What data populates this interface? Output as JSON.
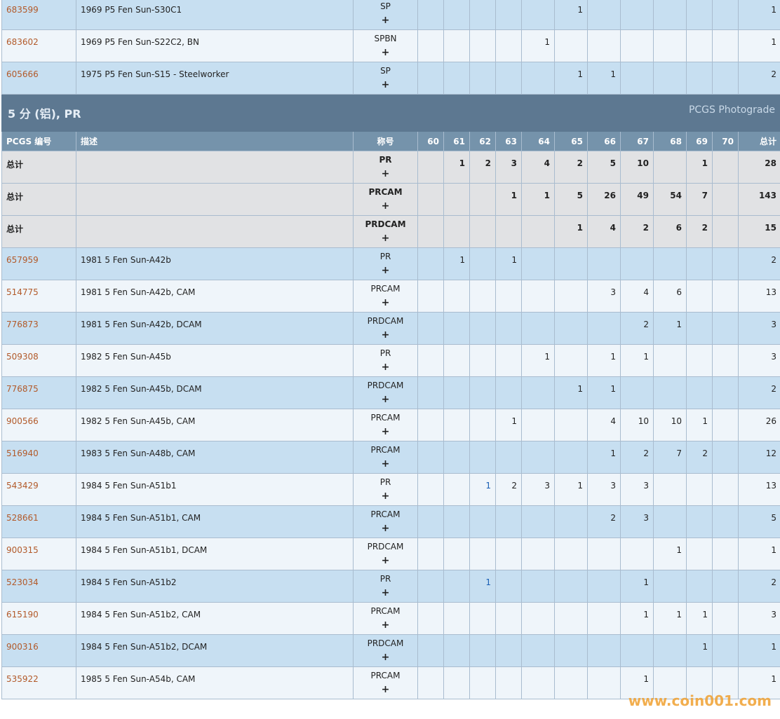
{
  "top_rows": [
    {
      "id": "683599",
      "desc": "1969 P5 Fen Sun-S30C1",
      "des": "SP",
      "grades": [
        null,
        null,
        null,
        null,
        null,
        1,
        null,
        null,
        null,
        null,
        null
      ],
      "total": "1"
    },
    {
      "id": "683602",
      "desc": "1969 P5 Fen Sun-S22C2, BN",
      "des": "SPBN",
      "grades": [
        null,
        null,
        null,
        null,
        1,
        null,
        null,
        null,
        null,
        null,
        null
      ],
      "total": "1"
    },
    {
      "id": "605666",
      "desc": "1975 P5 Fen Sun-S15 - Steelworker",
      "des": "SP",
      "grades": [
        null,
        null,
        null,
        null,
        null,
        1,
        1,
        null,
        null,
        null,
        null
      ],
      "total": "2"
    }
  ],
  "section": {
    "title": "5 分 (铝), PR",
    "link": "PCGS Photograde"
  },
  "headers": {
    "id": "PCGS 编号",
    "desc": "描述",
    "des": "称号",
    "grades": [
      "60",
      "61",
      "62",
      "63",
      "64",
      "65",
      "66",
      "67",
      "68",
      "69",
      "70"
    ],
    "total": "总计"
  },
  "plus": "+",
  "totals": [
    {
      "label": "总计",
      "des": "PR",
      "grades": [
        null,
        1,
        2,
        3,
        4,
        2,
        5,
        10,
        null,
        1,
        null
      ],
      "total": "28"
    },
    {
      "label": "总计",
      "des": "PRCAM",
      "grades": [
        null,
        null,
        null,
        1,
        1,
        5,
        26,
        49,
        54,
        7,
        null
      ],
      "total": "143"
    },
    {
      "label": "总计",
      "des": "PRDCAM",
      "grades": [
        null,
        null,
        null,
        null,
        null,
        1,
        4,
        2,
        6,
        2,
        null
      ],
      "total": "15"
    }
  ],
  "rows": [
    {
      "id": "657959",
      "desc": "1981 5 Fen Sun-A42b",
      "des": "PR",
      "grades": [
        null,
        1,
        null,
        1,
        null,
        null,
        null,
        null,
        null,
        null,
        null
      ],
      "total": "2"
    },
    {
      "id": "514775",
      "desc": "1981 5 Fen Sun-A42b, CAM",
      "des": "PRCAM",
      "grades": [
        null,
        null,
        null,
        null,
        null,
        null,
        3,
        4,
        6,
        null,
        null
      ],
      "total": "13"
    },
    {
      "id": "776873",
      "desc": "1981 5 Fen Sun-A42b, DCAM",
      "des": "PRDCAM",
      "grades": [
        null,
        null,
        null,
        null,
        null,
        null,
        null,
        2,
        1,
        null,
        null
      ],
      "total": "3"
    },
    {
      "id": "509308",
      "desc": "1982 5 Fen Sun-A45b",
      "des": "PR",
      "grades": [
        null,
        null,
        null,
        null,
        1,
        null,
        1,
        1,
        null,
        null,
        null
      ],
      "total": "3"
    },
    {
      "id": "776875",
      "desc": "1982 5 Fen Sun-A45b, DCAM",
      "des": "PRDCAM",
      "grades": [
        null,
        null,
        null,
        null,
        null,
        1,
        1,
        null,
        null,
        null,
        null
      ],
      "total": "2"
    },
    {
      "id": "900566",
      "desc": "1982 5 Fen Sun-A45b, CAM",
      "des": "PRCAM",
      "grades": [
        null,
        null,
        null,
        1,
        null,
        null,
        4,
        10,
        10,
        1,
        null
      ],
      "total": "26"
    },
    {
      "id": "516940",
      "desc": "1983 5 Fen Sun-A48b, CAM",
      "des": "PRCAM",
      "grades": [
        null,
        null,
        null,
        null,
        null,
        null,
        1,
        2,
        7,
        2,
        null
      ],
      "total": "12"
    },
    {
      "id": "543429",
      "desc": "1984 5 Fen Sun-A51b1",
      "des": "PR",
      "grades": [
        null,
        null,
        1,
        2,
        3,
        1,
        3,
        3,
        null,
        null,
        null
      ],
      "total": "13"
    },
    {
      "id": "528661",
      "desc": "1984 5 Fen Sun-A51b1, CAM",
      "des": "PRCAM",
      "grades": [
        null,
        null,
        null,
        null,
        null,
        null,
        2,
        3,
        null,
        null,
        null
      ],
      "total": "5"
    },
    {
      "id": "900315",
      "desc": "1984 5 Fen Sun-A51b1, DCAM",
      "des": "PRDCAM",
      "grades": [
        null,
        null,
        null,
        null,
        null,
        null,
        null,
        null,
        1,
        null,
        null
      ],
      "total": "1"
    },
    {
      "id": "523034",
      "desc": "1984 5 Fen Sun-A51b2",
      "des": "PR",
      "grades": [
        null,
        null,
        1,
        null,
        null,
        null,
        null,
        1,
        null,
        null,
        null
      ],
      "total": "2"
    },
    {
      "id": "615190",
      "desc": "1984 5 Fen Sun-A51b2, CAM",
      "des": "PRCAM",
      "grades": [
        null,
        null,
        null,
        null,
        null,
        null,
        null,
        1,
        1,
        1,
        null
      ],
      "total": "3"
    },
    {
      "id": "900316",
      "desc": "1984 5 Fen Sun-A51b2, DCAM",
      "des": "PRDCAM",
      "grades": [
        null,
        null,
        null,
        null,
        null,
        null,
        null,
        null,
        null,
        1,
        null
      ],
      "total": "1"
    },
    {
      "id": "535922",
      "desc": "1985 5 Fen Sun-A54b, CAM",
      "des": "PRCAM",
      "grades": [
        null,
        null,
        null,
        null,
        null,
        null,
        null,
        1,
        null,
        null,
        null
      ],
      "total": "1"
    }
  ],
  "watermark": "www.coin001.com",
  "colors": {
    "row_blue": "#c7dff1",
    "row_light": "#eff5fa",
    "total_row": "#e1e2e4",
    "section": "#5d7891",
    "header": "#7593ab",
    "id_link": "#b25a2a"
  }
}
